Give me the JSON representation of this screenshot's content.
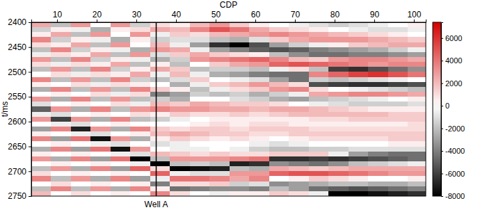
{
  "chart_data": {
    "type": "heatmap",
    "x_label": "CDP",
    "y_label": "t/ms",
    "xlim": [
      3.5,
      103
    ],
    "xticks": [
      10,
      20,
      30,
      40,
      50,
      60,
      70,
      80,
      90,
      100
    ],
    "ylim": [
      2400,
      2750
    ],
    "yticks": [
      2400,
      2450,
      2500,
      2550,
      2600,
      2650,
      2700,
      2750
    ],
    "annotations": [
      {
        "text": "Well A",
        "x": 35
      }
    ],
    "cells": {
      "x": [
        6,
        11,
        16,
        21,
        26,
        31,
        36,
        41,
        46,
        51,
        56,
        61,
        66,
        71,
        76,
        81,
        86,
        91,
        96,
        101
      ],
      "y": [
        2405,
        2415,
        2425,
        2435,
        2445,
        2455,
        2465,
        2475,
        2485,
        2495,
        2505,
        2515,
        2525,
        2535,
        2545,
        2555,
        2565,
        2575,
        2585,
        2595,
        2605,
        2615,
        2625,
        2635,
        2645,
        2655,
        2665,
        2675,
        2685,
        2695,
        2705,
        2715,
        2725,
        2735,
        2745
      ],
      "values": [
        [
          2500,
          -1500,
          500,
          3500,
          1000,
          -2000,
          -500,
          3000,
          1000,
          -2000,
          0,
          3500,
          500,
          -2500,
          0,
          3000,
          -1000,
          -5000,
          -500,
          3000,
          0,
          -3000,
          500,
          3500,
          0,
          -2500,
          500,
          3000,
          0,
          -2000,
          1000,
          3500,
          0,
          -2000,
          2000
        ],
        [
          -2000,
          500,
          2500,
          -1500,
          500,
          3500,
          1000,
          -2000,
          -500,
          3000,
          1000,
          -2000,
          0,
          3500,
          500,
          -2500,
          0,
          3000,
          -1000,
          -6000,
          -500,
          3500,
          0,
          -3000,
          500,
          3500,
          0,
          -2500,
          500,
          3000,
          0,
          -2000,
          1000,
          3500,
          0
        ],
        [
          3000,
          -500,
          -2000,
          500,
          2500,
          -1500,
          500,
          3500,
          1000,
          -2000,
          -500,
          3000,
          1000,
          -2000,
          0,
          3500,
          500,
          -2500,
          0,
          3000,
          -1000,
          -7000,
          -500,
          4000,
          0,
          -3000,
          500,
          3500,
          0,
          -2500,
          500,
          3000,
          0,
          -2000,
          1000
        ],
        [
          0,
          -2500,
          3000,
          -500,
          -2000,
          500,
          2500,
          -1500,
          500,
          3500,
          1000,
          -2000,
          -500,
          3000,
          1000,
          -2000,
          0,
          3500,
          500,
          -2500,
          0,
          3000,
          -1000,
          -7500,
          -500,
          4000,
          0,
          -3000,
          500,
          3500,
          0,
          -2500,
          500,
          3000,
          0
        ],
        [
          3000,
          500,
          0,
          -2500,
          3000,
          -500,
          -2000,
          500,
          2500,
          -1500,
          500,
          3500,
          1000,
          -2000,
          -500,
          3000,
          1000,
          -2000,
          0,
          3500,
          500,
          -2500,
          0,
          3000,
          -1000,
          -7500,
          -500,
          4000,
          0,
          -3000,
          500,
          3500,
          0,
          -2500,
          500
        ],
        [
          -1500,
          1000,
          3000,
          500,
          0,
          -2500,
          3000,
          -500,
          -2000,
          500,
          2500,
          -1500,
          500,
          3500,
          1000,
          -2000,
          -500,
          3000,
          1000,
          -2000,
          0,
          3500,
          500,
          -2500,
          0,
          3000,
          -1000,
          -8000,
          -500,
          4500,
          0,
          -3000,
          500,
          3500,
          0
        ],
        [
          1000,
          2500,
          -500,
          -1500,
          2000,
          3000,
          -1000,
          -2500,
          500,
          2500,
          -500,
          -2000,
          0,
          1500,
          -4000,
          -1500,
          2000,
          3500,
          500,
          -1500,
          0,
          1500,
          2000,
          500,
          -1000,
          0,
          2000,
          -2000,
          -8000,
          1000,
          4500,
          -500,
          -4000,
          500,
          3500
        ],
        [
          500,
          2000,
          1500,
          -1000,
          -500,
          2500,
          1500,
          -1500,
          -2000,
          1500,
          2000,
          -1000,
          -2500,
          500,
          -3000,
          -2500,
          1500,
          3000,
          1500,
          -500,
          0,
          1000,
          2500,
          1500,
          -500,
          -500,
          1500,
          3000,
          -2000,
          -8000,
          -500,
          4000,
          1000,
          -4500,
          1000
        ],
        [
          2000,
          3500,
          1000,
          -1000,
          -3000,
          -500,
          2500,
          3000,
          0,
          -2000,
          -500,
          1500,
          -500,
          -2000,
          -1500,
          0,
          2500,
          3000,
          1000,
          0,
          500,
          1500,
          2000,
          1000,
          0,
          -500,
          1000,
          3000,
          -1500,
          -7500,
          -1000,
          4000,
          1000,
          -4000,
          0
        ],
        [
          3000,
          5000,
          2000,
          -2000,
          -6500,
          -3000,
          1500,
          3500,
          1500,
          -1500,
          -2500,
          0,
          1500,
          -500,
          -2000,
          0,
          2000,
          2500,
          1000,
          500,
          1000,
          1500,
          1500,
          500,
          0,
          0,
          1500,
          3000,
          -2000,
          -7000,
          -1000,
          3500,
          1500,
          -3500,
          -500
        ],
        [
          1500,
          4000,
          2500,
          -2500,
          -8000,
          -4000,
          1000,
          4000,
          2500,
          -1500,
          -3000,
          -500,
          2000,
          1000,
          -1500,
          -1000,
          1500,
          2500,
          1500,
          500,
          500,
          1000,
          1500,
          1000,
          0,
          -500,
          1000,
          3500,
          -7000,
          -2000,
          3000,
          2500,
          -1500,
          -3500,
          500
        ],
        [
          500,
          2500,
          3000,
          -1000,
          -5500,
          -5000,
          500,
          4500,
          3000,
          -2000,
          -4000,
          -1000,
          3000,
          1500,
          -2500,
          -1500,
          1500,
          2000,
          1000,
          500,
          1000,
          1500,
          1000,
          500,
          -500,
          -1500,
          1000,
          4000,
          -6500,
          -2500,
          3000,
          3500,
          -1000,
          -4000,
          500
        ],
        [
          0,
          1500,
          3500,
          1500,
          -3000,
          -5500,
          -2000,
          3500,
          4500,
          -500,
          -4500,
          -3000,
          2000,
          3000,
          -1500,
          -2500,
          1000,
          2500,
          1500,
          500,
          1000,
          1500,
          1000,
          0,
          -1000,
          -2000,
          1500,
          -6500,
          -3500,
          2500,
          4500,
          0,
          -3500,
          -2000,
          1500
        ],
        [
          -500,
          1000,
          3000,
          2500,
          -1500,
          -5000,
          -3500,
          2000,
          5000,
          1000,
          -4500,
          -4500,
          1000,
          3500,
          -500,
          -3000,
          0,
          2500,
          2000,
          500,
          500,
          1500,
          1500,
          500,
          -500,
          -2000,
          1500,
          -6500,
          -4000,
          2000,
          5000,
          500,
          -3000,
          -3000,
          1000
        ],
        [
          -1000,
          500,
          2500,
          3000,
          -500,
          -4000,
          -4500,
          1500,
          4500,
          -2000,
          3500,
          -1500,
          -5500,
          1000,
          2500,
          -2000,
          -500,
          2000,
          2000,
          1000,
          500,
          1000,
          1500,
          1000,
          0,
          -1500,
          1500,
          -6000,
          -4500,
          1500,
          5000,
          1500,
          -2500,
          -4500,
          -500
        ],
        [
          -1500,
          0,
          2000,
          3000,
          500,
          -3500,
          -4500,
          3000,
          4000,
          -6000,
          4500,
          -2000,
          -6000,
          0,
          3000,
          -1500,
          -1000,
          1500,
          2000,
          1000,
          500,
          1000,
          1500,
          1000,
          0,
          -1500,
          -500,
          -6500,
          -3500,
          2000,
          4500,
          1000,
          -2000,
          -5000,
          -8000
        ],
        [
          -1000,
          -500,
          1500,
          3000,
          1500,
          -3000,
          -4000,
          3500,
          3500,
          -6500,
          5500,
          -1500,
          -6500,
          -500,
          3500,
          -1000,
          -1500,
          1000,
          2000,
          1500,
          500,
          1000,
          1500,
          1000,
          0,
          -1000,
          -3000,
          -6000,
          -2000,
          2500,
          4000,
          500,
          -2000,
          -5500,
          -8000
        ],
        [
          -500,
          -1000,
          1000,
          2500,
          2000,
          -2500,
          -4000,
          3500,
          3000,
          -5500,
          6000,
          -1000,
          -6500,
          -1000,
          3500,
          -500,
          -1500,
          500,
          2000,
          1500,
          500,
          1000,
          1500,
          1000,
          0,
          -1000,
          -4000,
          -5500,
          -1500,
          2500,
          3500,
          0,
          -2500,
          -5000,
          -7500
        ],
        [
          0,
          -1000,
          500,
          2000,
          2500,
          -1500,
          -3500,
          3000,
          3500,
          -4500,
          5000,
          -500,
          -6000,
          -1500,
          3000,
          0,
          -1500,
          500,
          1500,
          1500,
          500,
          1000,
          1500,
          1500,
          500,
          -1000,
          -4500,
          -5000,
          -1000,
          2500,
          3000,
          0,
          -2500,
          -4500,
          -7000
        ],
        [
          500,
          -500,
          0,
          1500,
          2500,
          -500,
          -3000,
          2500,
          3500,
          -3500,
          4000,
          0,
          -5500,
          -2000,
          2500,
          500,
          -1000,
          500,
          1500,
          1500,
          1000,
          1000,
          1500,
          1500,
          500,
          -1000,
          -4500,
          -4500,
          -500,
          2500,
          3000,
          500,
          -2000,
          -4000,
          -6500
        ]
      ]
    },
    "colorbar": {
      "range": [
        -8000,
        7400
      ],
      "ticks": [
        6000,
        4000,
        2000,
        0,
        -2000,
        -4000,
        -6000,
        -8000
      ]
    }
  }
}
